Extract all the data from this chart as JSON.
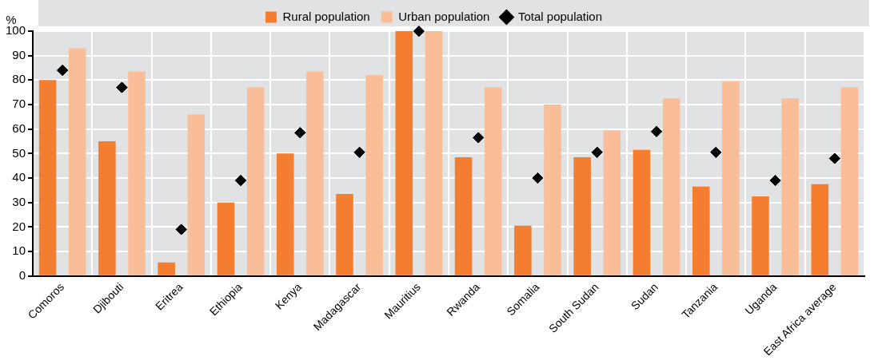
{
  "chart_data": {
    "type": "bar",
    "ylabel": "%",
    "categories": [
      "Comoros",
      "Djibouti",
      "Eritrea",
      "Ethiopia",
      "Kenya",
      "Madagascar",
      "Mauritius",
      "Rwanda",
      "Somalia",
      "South Sudan",
      "Sudan",
      "Tanzania",
      "Uganda",
      "East Africa average"
    ],
    "series": [
      {
        "name": "Rural population",
        "color": "#f47d30",
        "values": [
          80,
          55,
          5.5,
          30,
          50,
          33.5,
          100,
          48.5,
          20.5,
          48.5,
          51.5,
          36.5,
          32.5,
          37.5
        ]
      },
      {
        "name": "Urban population",
        "color": "#f9be97",
        "values": [
          93,
          83.5,
          66,
          77,
          83.5,
          82,
          100,
          77,
          70,
          59.5,
          72.5,
          79.5,
          72.5,
          77
        ]
      },
      {
        "name": "Total population",
        "type": "scatter",
        "color": "#000000",
        "x": [
          "Comoros",
          "Djibouti",
          "Eritrea",
          "Ethiopia",
          "Kenya",
          "Madagascar",
          "Mauritius",
          "Rwanda",
          "Somalia",
          "South Sudan",
          "Sudan",
          "Tanzania",
          "Uganda",
          "East Africa average"
        ],
        "values": [
          84,
          77,
          19,
          39,
          58.5,
          50.5,
          100,
          56.5,
          40,
          50.5,
          59,
          50.5,
          39,
          48
        ]
      }
    ],
    "ylim": [
      0,
      100
    ],
    "yticks": [
      0,
      10,
      20,
      30,
      40,
      50,
      60,
      70,
      80,
      90,
      100
    ],
    "grid": true,
    "legend": "top",
    "marker": "diamond"
  }
}
